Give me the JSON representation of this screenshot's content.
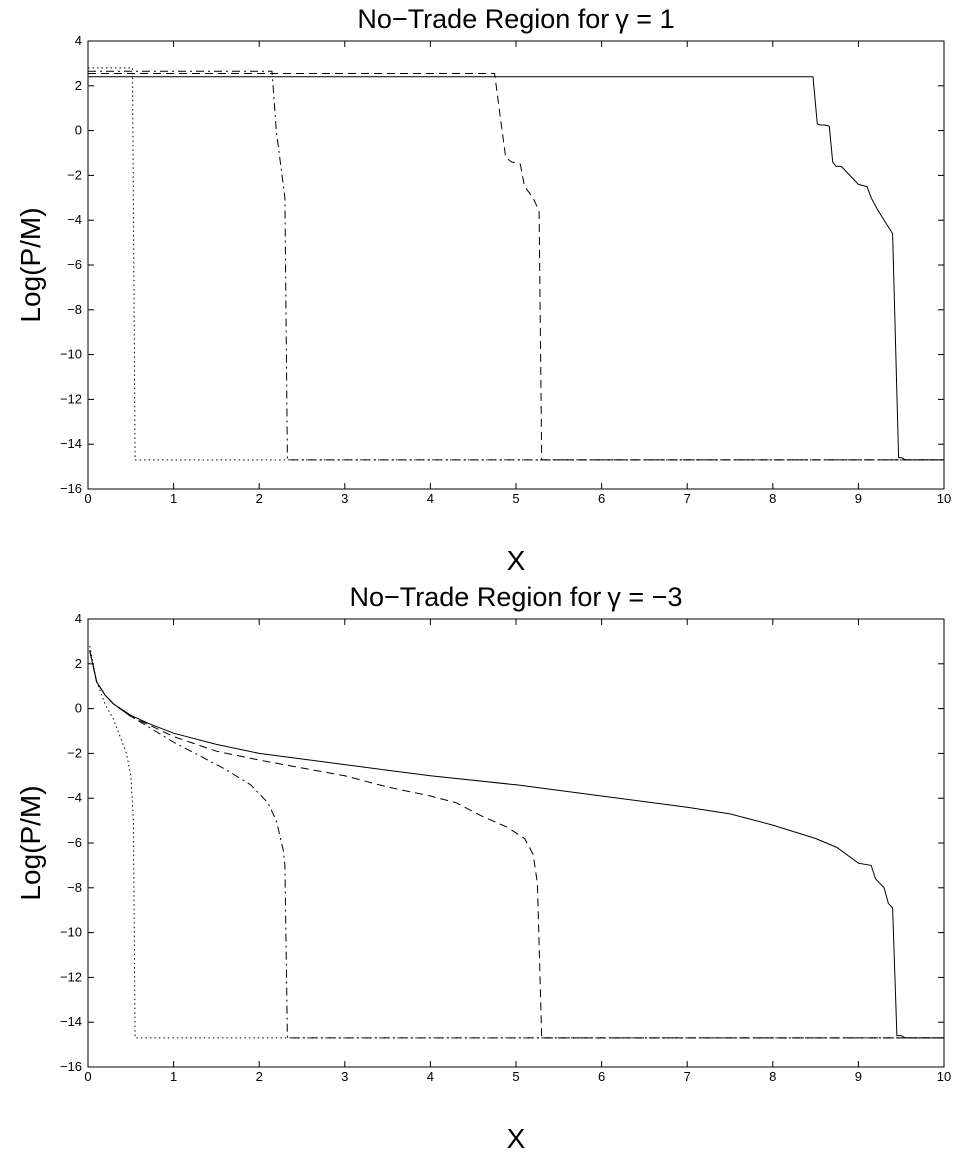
{
  "chart_data": [
    {
      "type": "line",
      "title": "No−Trade Region for",
      "title_symbol": "γ = 1",
      "xlabel": "X",
      "ylabel": "Log(P/M)",
      "xlim": [
        0,
        10
      ],
      "ylim": [
        -16,
        4
      ],
      "xticks": [
        "0",
        "1",
        "2",
        "3",
        "4",
        "5",
        "6",
        "7",
        "8",
        "9",
        "10"
      ],
      "yticks": [
        "4",
        "2",
        "0",
        "−2",
        "−4",
        "−6",
        "−8",
        "−10",
        "−12",
        "−14",
        "−16"
      ],
      "grid": false,
      "series": [
        {
          "style": "solid",
          "x": [
            0.0,
            8.47,
            8.52,
            8.55,
            8.6,
            8.66,
            8.7,
            8.74,
            8.8,
            8.9,
            9.0,
            9.1,
            9.15,
            9.22,
            9.3,
            9.35,
            9.4,
            9.47,
            9.5,
            9.55,
            9.7,
            10.0
          ],
          "y": [
            2.4,
            2.4,
            0.3,
            0.25,
            0.25,
            0.2,
            -1.4,
            -1.6,
            -1.6,
            -2.0,
            -2.4,
            -2.5,
            -3.0,
            -3.5,
            -4.0,
            -4.3,
            -4.6,
            -14.6,
            -14.6,
            -14.7,
            -14.7,
            -14.7
          ]
        },
        {
          "style": "dashed",
          "x": [
            0.0,
            4.75,
            4.82,
            4.88,
            4.95,
            5.05,
            5.1,
            5.2,
            5.27,
            5.3,
            10.0
          ],
          "y": [
            2.55,
            2.55,
            0.5,
            -1.2,
            -1.4,
            -1.5,
            -2.5,
            -3.0,
            -3.6,
            -14.7,
            -14.7
          ]
        },
        {
          "style": "dashdot",
          "x": [
            0.0,
            2.15,
            2.2,
            2.3,
            2.33,
            10.0
          ],
          "y": [
            2.65,
            2.65,
            0.0,
            -3.0,
            -14.7,
            -14.7
          ]
        },
        {
          "style": "dotted",
          "x": [
            0.0,
            0.52,
            0.55,
            10.0
          ],
          "y": [
            2.8,
            2.8,
            -14.7,
            -14.7
          ]
        }
      ]
    },
    {
      "type": "line",
      "title": "No−Trade Region for",
      "title_symbol": "γ = −3",
      "xlabel": "X",
      "ylabel": "Log(P/M)",
      "xlim": [
        0,
        10
      ],
      "ylim": [
        -16,
        4
      ],
      "xticks": [
        "0",
        "1",
        "2",
        "3",
        "4",
        "5",
        "6",
        "7",
        "8",
        "9",
        "10"
      ],
      "yticks": [
        "4",
        "2",
        "0",
        "−2",
        "−4",
        "−6",
        "−8",
        "−10",
        "−12",
        "−14",
        "−16"
      ],
      "grid": false,
      "series": [
        {
          "style": "solid",
          "x": [
            0.02,
            0.1,
            0.2,
            0.3,
            0.5,
            0.7,
            1.0,
            1.5,
            2.0,
            3.0,
            4.0,
            5.0,
            6.0,
            7.0,
            7.5,
            8.0,
            8.5,
            8.75,
            9.0,
            9.15,
            9.2,
            9.3,
            9.35,
            9.4,
            9.45,
            9.5,
            9.55,
            10.0
          ],
          "y": [
            2.6,
            1.2,
            0.6,
            0.2,
            -0.3,
            -0.65,
            -1.1,
            -1.6,
            -2.0,
            -2.5,
            -3.0,
            -3.4,
            -3.9,
            -4.4,
            -4.7,
            -5.2,
            -5.8,
            -6.2,
            -6.9,
            -7.0,
            -7.6,
            -8.0,
            -8.7,
            -8.9,
            -14.6,
            -14.6,
            -14.7,
            -14.7
          ]
        },
        {
          "style": "dashed",
          "x": [
            0.02,
            0.1,
            0.2,
            0.3,
            0.5,
            0.7,
            1.0,
            1.5,
            2.0,
            3.0,
            3.5,
            4.0,
            4.3,
            4.6,
            4.9,
            5.1,
            5.2,
            5.25,
            5.3,
            10.0
          ],
          "y": [
            2.6,
            1.2,
            0.6,
            0.2,
            -0.35,
            -0.7,
            -1.25,
            -1.9,
            -2.3,
            -3.0,
            -3.5,
            -3.9,
            -4.2,
            -4.8,
            -5.3,
            -5.8,
            -6.5,
            -7.8,
            -14.7,
            -14.7
          ]
        },
        {
          "style": "dashdot",
          "x": [
            0.02,
            0.1,
            0.2,
            0.3,
            0.5,
            0.7,
            1.0,
            1.3,
            1.6,
            1.9,
            2.1,
            2.2,
            2.28,
            2.3,
            2.33,
            10.0
          ],
          "y": [
            2.6,
            1.2,
            0.6,
            0.2,
            -0.35,
            -0.8,
            -1.5,
            -2.1,
            -2.7,
            -3.4,
            -4.2,
            -5.0,
            -6.3,
            -7.0,
            -14.7,
            -14.7
          ]
        },
        {
          "style": "dotted",
          "x": [
            0.02,
            0.1,
            0.2,
            0.3,
            0.4,
            0.45,
            0.5,
            0.53,
            0.55,
            10.0
          ],
          "y": [
            2.8,
            1.2,
            0.2,
            -0.5,
            -1.5,
            -2.0,
            -3.0,
            -5.0,
            -14.7,
            -14.7
          ]
        }
      ]
    }
  ]
}
